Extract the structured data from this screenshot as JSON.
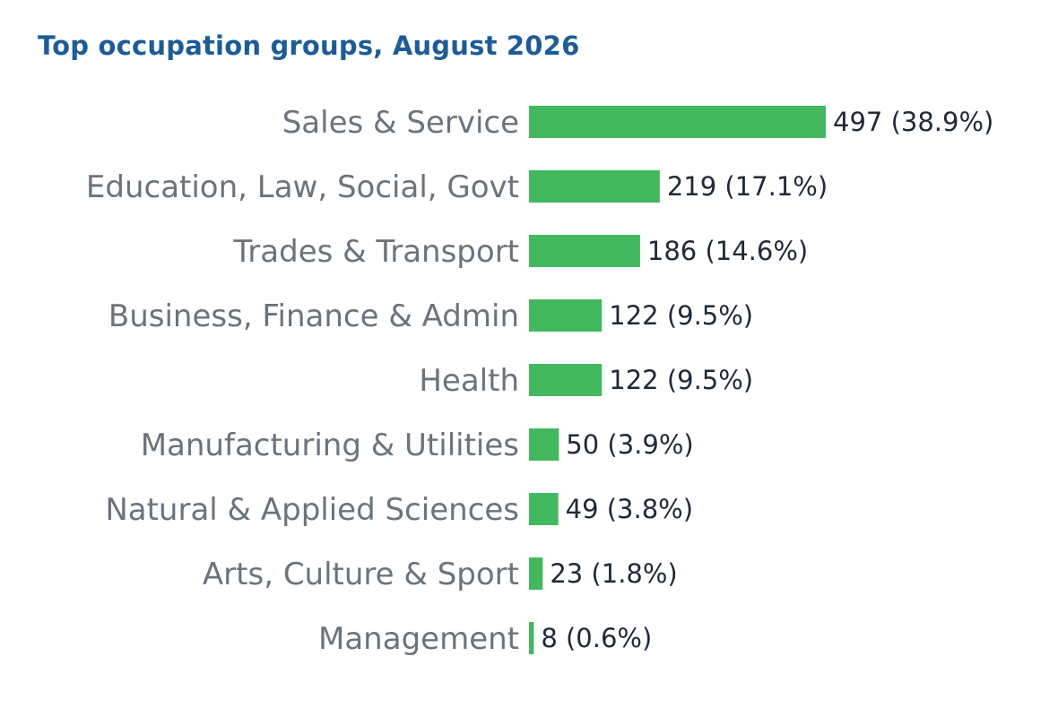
{
  "chart_data": {
    "type": "bar",
    "orientation": "horizontal",
    "title": "Top occupation groups, August 2026",
    "categories": [
      "Sales & Service",
      "Education, Law, Social, Govt",
      "Trades & Transport",
      "Business, Finance & Admin",
      "Health",
      "Manufacturing & Utilities",
      "Natural & Applied Sciences",
      "Arts, Culture & Sport",
      "Management"
    ],
    "values": [
      497,
      219,
      186,
      122,
      122,
      50,
      49,
      23,
      8
    ],
    "data_labels": [
      "497  (38.9%)",
      "219  (17.1%)",
      "186  (14.6%)",
      "122  (9.5%)",
      "122  (9.5%)",
      "50  (3.9%)",
      "49  (3.8%)",
      "23  (1.8%)",
      "8  (0.6%)"
    ],
    "xlim": [
      0,
      497
    ],
    "grid": false,
    "legend": "none",
    "bar_color": "#42b85f"
  }
}
